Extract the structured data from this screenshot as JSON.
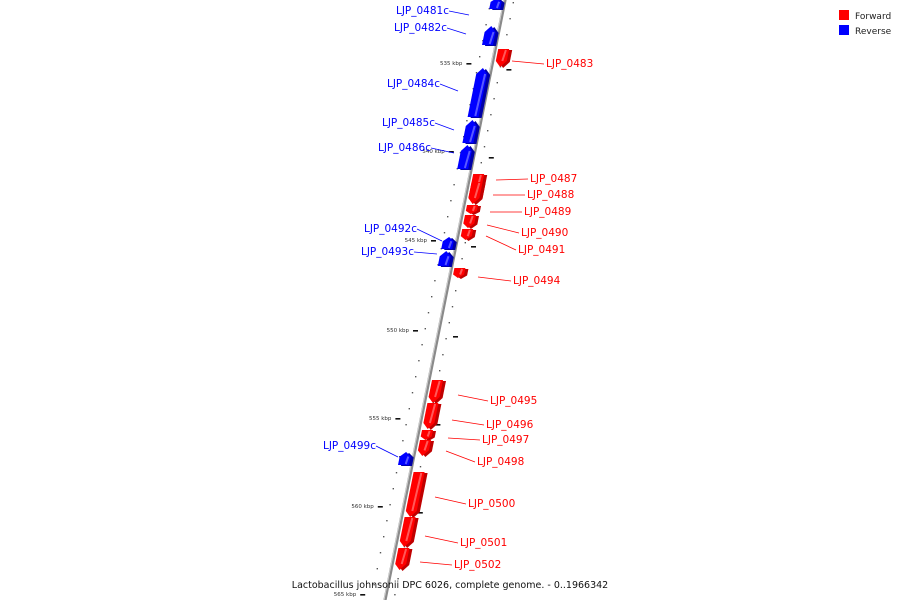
{
  "caption": "Lactobacillus johnsonii DPC 6026, complete genome. - 0..1966342",
  "colors": {
    "forward": "#ff0000",
    "forward_shade": "#c00000",
    "reverse": "#0000ff",
    "reverse_shade": "#0000a8",
    "backbone": "#8a8a8a"
  },
  "legend": [
    {
      "label": "Forward",
      "color": "#ff0000"
    },
    {
      "label": "Reverse",
      "color": "#0000ff"
    }
  ],
  "ticks": [
    {
      "label": "535 kbp"
    },
    {
      "label": "540 kbp"
    },
    {
      "label": "545 kbp"
    },
    {
      "label": "550 kbp"
    },
    {
      "label": "555 kbp"
    },
    {
      "label": "560 kbp"
    },
    {
      "label": "565 kbp"
    }
  ],
  "genes": [
    {
      "name": "LJP_0481c",
      "strand": "reverse"
    },
    {
      "name": "LJP_0482c",
      "strand": "reverse"
    },
    {
      "name": "LJP_0483",
      "strand": "forward"
    },
    {
      "name": "LJP_0484c",
      "strand": "reverse"
    },
    {
      "name": "LJP_0485c",
      "strand": "reverse"
    },
    {
      "name": "LJP_0486c",
      "strand": "reverse"
    },
    {
      "name": "LJP_0487",
      "strand": "forward"
    },
    {
      "name": "LJP_0488",
      "strand": "forward"
    },
    {
      "name": "LJP_0489",
      "strand": "forward"
    },
    {
      "name": "LJP_0490",
      "strand": "forward"
    },
    {
      "name": "LJP_0491",
      "strand": "forward"
    },
    {
      "name": "LJP_0492c",
      "strand": "reverse"
    },
    {
      "name": "LJP_0493c",
      "strand": "reverse"
    },
    {
      "name": "LJP_0494",
      "strand": "forward"
    },
    {
      "name": "LJP_0495",
      "strand": "forward"
    },
    {
      "name": "LJP_0496",
      "strand": "forward"
    },
    {
      "name": "LJP_0497",
      "strand": "forward"
    },
    {
      "name": "LJP_0498",
      "strand": "forward"
    },
    {
      "name": "LJP_0499c",
      "strand": "reverse"
    },
    {
      "name": "LJP_0500",
      "strand": "forward"
    },
    {
      "name": "LJP_0501",
      "strand": "forward"
    },
    {
      "name": "LJP_0502",
      "strand": "forward"
    }
  ]
}
